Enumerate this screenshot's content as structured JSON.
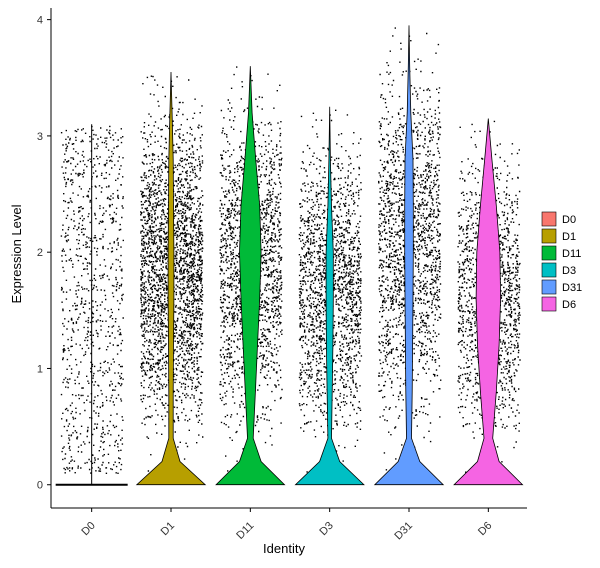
{
  "chart_data": {
    "type": "violin",
    "xlabel": "Identity",
    "ylabel": "Expression Level",
    "ylim": [
      -0.2,
      4.1
    ],
    "y_ticks": [
      0,
      1,
      2,
      3,
      4
    ],
    "grid": false,
    "legend_position": "right",
    "categories": [
      "D0",
      "D1",
      "D11",
      "D3",
      "D31",
      "D6"
    ],
    "series": [
      {
        "name": "D0",
        "color": "#F8766D",
        "max": 3.1,
        "zero_mass": 0.0,
        "points_density": "sparse",
        "profile": [
          [
            0,
            0.0
          ],
          [
            0.4,
            0.0
          ],
          [
            0.8,
            0.0
          ],
          [
            1.2,
            0.0
          ],
          [
            1.6,
            0.0
          ],
          [
            2.0,
            0.0
          ],
          [
            2.4,
            0.0
          ],
          [
            2.8,
            0.0
          ],
          [
            3.1,
            0.0
          ]
        ]
      },
      {
        "name": "D1",
        "color": "#B79F00",
        "max": 3.55,
        "zero_mass": 0.95,
        "points_density": "dense",
        "profile": [
          [
            0,
            0.95
          ],
          [
            0.2,
            0.25
          ],
          [
            0.4,
            0.06
          ],
          [
            0.8,
            0.06
          ],
          [
            1.2,
            0.07
          ],
          [
            1.6,
            0.08
          ],
          [
            2.0,
            0.08
          ],
          [
            2.4,
            0.07
          ],
          [
            2.8,
            0.06
          ],
          [
            3.2,
            0.03
          ],
          [
            3.55,
            0.0
          ]
        ]
      },
      {
        "name": "D11",
        "color": "#00BA38",
        "max": 3.6,
        "zero_mass": 0.95,
        "points_density": "dense",
        "profile": [
          [
            0,
            0.95
          ],
          [
            0.2,
            0.3
          ],
          [
            0.4,
            0.08
          ],
          [
            0.8,
            0.14
          ],
          [
            1.2,
            0.2
          ],
          [
            1.6,
            0.26
          ],
          [
            2.0,
            0.3
          ],
          [
            2.4,
            0.26
          ],
          [
            2.8,
            0.15
          ],
          [
            3.2,
            0.05
          ],
          [
            3.6,
            0.0
          ]
        ]
      },
      {
        "name": "D3",
        "color": "#00BFC4",
        "max": 3.25,
        "zero_mass": 0.95,
        "points_density": "dense",
        "profile": [
          [
            0,
            0.95
          ],
          [
            0.2,
            0.28
          ],
          [
            0.4,
            0.05
          ],
          [
            0.8,
            0.07
          ],
          [
            1.2,
            0.09
          ],
          [
            1.6,
            0.1
          ],
          [
            2.0,
            0.1
          ],
          [
            2.4,
            0.05
          ],
          [
            2.8,
            0.02
          ],
          [
            3.25,
            0.0
          ]
        ]
      },
      {
        "name": "D31",
        "color": "#619CFF",
        "max": 3.95,
        "zero_mass": 0.95,
        "points_density": "very-dense",
        "profile": [
          [
            0,
            0.95
          ],
          [
            0.2,
            0.3
          ],
          [
            0.4,
            0.07
          ],
          [
            0.8,
            0.09
          ],
          [
            1.2,
            0.1
          ],
          [
            1.6,
            0.11
          ],
          [
            2.0,
            0.12
          ],
          [
            2.4,
            0.12
          ],
          [
            2.8,
            0.11
          ],
          [
            3.2,
            0.05
          ],
          [
            3.6,
            0.02
          ],
          [
            3.95,
            0.0
          ]
        ]
      },
      {
        "name": "D6",
        "color": "#F564E3",
        "max": 3.15,
        "zero_mass": 0.95,
        "points_density": "medium",
        "profile": [
          [
            0,
            0.95
          ],
          [
            0.2,
            0.3
          ],
          [
            0.4,
            0.12
          ],
          [
            0.8,
            0.22
          ],
          [
            1.2,
            0.3
          ],
          [
            1.6,
            0.34
          ],
          [
            2.0,
            0.32
          ],
          [
            2.4,
            0.22
          ],
          [
            2.8,
            0.1
          ],
          [
            3.15,
            0.0
          ]
        ]
      }
    ]
  }
}
